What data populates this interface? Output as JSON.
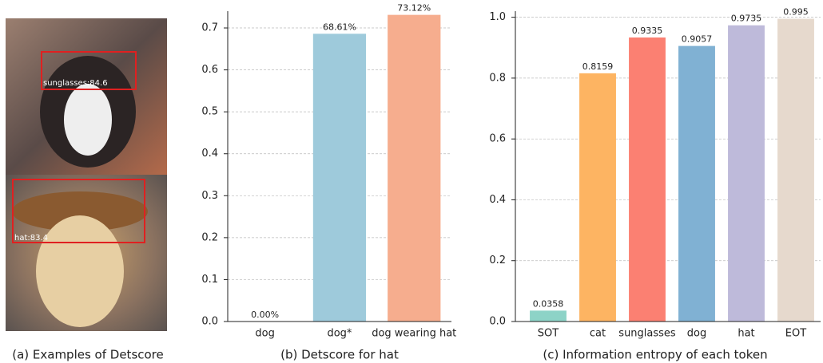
{
  "panel_a": {
    "caption": "(a) Examples of Detscore",
    "detections": [
      "sunglasses:84.6",
      "hat:83.4"
    ]
  },
  "chart_data": [
    {
      "type": "bar",
      "caption": "(b) Detscore for hat",
      "categories": [
        "dog",
        "dog*",
        "dog wearing hat"
      ],
      "values": [
        0,
        0.6861,
        0.7312
      ],
      "value_labels": [
        "0.00%",
        "68.61%",
        "73.12%"
      ],
      "colors": [
        "#8dd3c7",
        "#9ecadb",
        "#f6ad8e"
      ],
      "ylim": [
        0,
        0.74
      ],
      "yticks": [
        {
          "value": 0,
          "label": "0.0"
        },
        0.1,
        0.2,
        0.3,
        0.4,
        0.5,
        0.6,
        0.7
      ],
      "grid": true
    },
    {
      "type": "bar",
      "caption": "(c) Information entropy of each token",
      "categories": [
        "SOT",
        "cat",
        "sunglasses",
        "dog",
        "hat",
        "EOT"
      ],
      "values": [
        0.0358,
        0.8159,
        0.9335,
        0.9057,
        0.9735,
        0.995
      ],
      "colors": [
        "#8dd3c7",
        "#fdb462",
        "#fb8072",
        "#80b1d3",
        "#bebada",
        "#e6d9cd"
      ],
      "ylim": [
        0,
        1.02
      ],
      "yticks": [
        {
          "value": 0,
          "label": "0.0"
        },
        0.2,
        0.4,
        0.6,
        0.8,
        {
          "value": 1,
          "label": "1.0"
        }
      ],
      "grid": true
    }
  ]
}
